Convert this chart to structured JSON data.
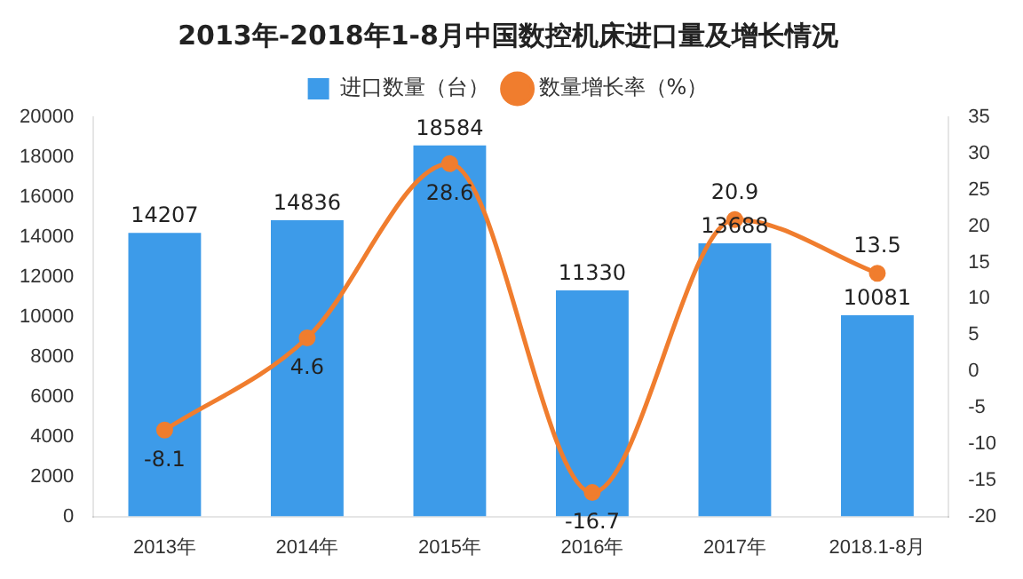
{
  "chart_data": {
    "type": "bar",
    "title": "2013年-2018年1-8月中国数控机床进口量及增长情况",
    "categories": [
      "2013年",
      "2014年",
      "2015年",
      "2016年",
      "2017年",
      "2018.1-8月"
    ],
    "series": [
      {
        "name": "进口数量（台）",
        "color": "#3d9be9",
        "values": [
          14207,
          14836,
          18584,
          11330,
          13688,
          10081
        ]
      },
      {
        "name": "数量增长率（%）",
        "type": "line",
        "axis": "y2",
        "color": "#f07d2e",
        "marker": "circle",
        "values": [
          -8.1,
          4.6,
          28.6,
          -16.7,
          20.9,
          13.5
        ]
      }
    ],
    "ylim": [
      0,
      20000
    ],
    "yticks": [
      0,
      2000,
      4000,
      6000,
      8000,
      10000,
      12000,
      14000,
      16000,
      18000,
      20000
    ],
    "y2lim": [
      -20,
      35
    ],
    "y2ticks": [
      -20,
      -15,
      -10,
      -5,
      0,
      5,
      10,
      15,
      20,
      25,
      30,
      35
    ],
    "data_labels": true,
    "legend": "top",
    "grid": false
  }
}
